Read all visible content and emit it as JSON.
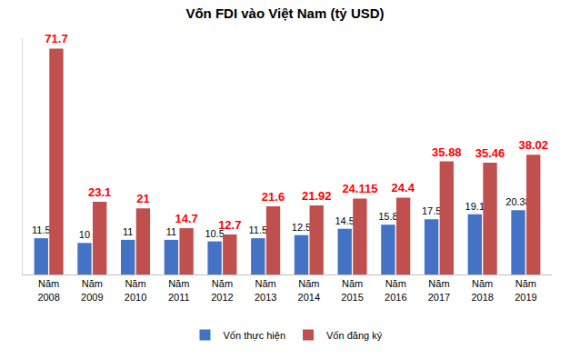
{
  "chart_data": {
    "type": "bar",
    "title": "Vốn FDI vào Việt Nam (tỷ USD)",
    "categories": [
      "Năm 2008",
      "Năm 2009",
      "Năm 2010",
      "Năm 2011",
      "Năm 2012",
      "Năm 2013",
      "Năm 2014",
      "Năm 2015",
      "Năm 2016",
      "Năm 2017",
      "Năm 2018",
      "Năm 2019"
    ],
    "series": [
      {
        "name": "Vốn thực hiện",
        "color": "#4472c4",
        "values": [
          11.5,
          10,
          11,
          11,
          10.5,
          11.5,
          12.5,
          14.5,
          15.8,
          17.5,
          19.1,
          20.38
        ]
      },
      {
        "name": "Vốn đăng ký",
        "color": "#c0504d",
        "values": [
          71.7,
          23.1,
          21,
          14.7,
          12.7,
          21.6,
          21.92,
          24.115,
          24.4,
          35.88,
          35.46,
          38.02
        ]
      }
    ],
    "ylim": [
      0,
      75
    ],
    "data_labels": true,
    "tick_labels": "x",
    "grid": false,
    "legend": "bottom"
  }
}
